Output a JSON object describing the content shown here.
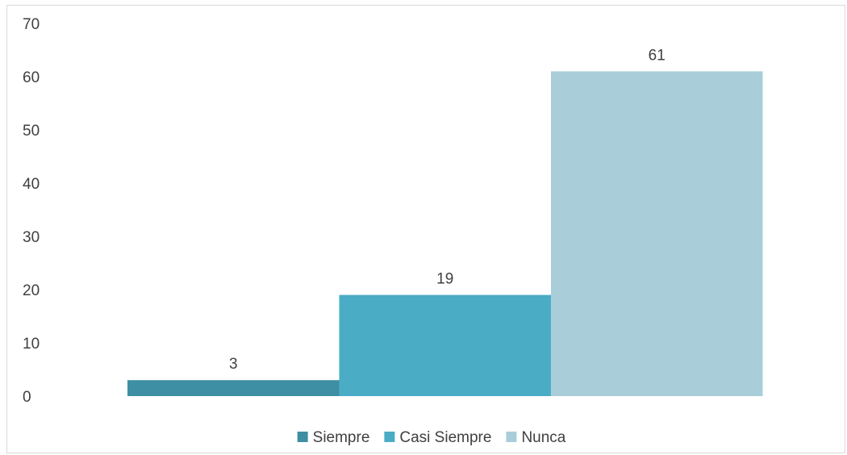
{
  "chart_data": {
    "type": "bar",
    "categories": [
      "Siempre",
      "Casi Siempre",
      "Nunca"
    ],
    "values": [
      3,
      19,
      61
    ],
    "colors": [
      "#3e8fa3",
      "#4bacc6",
      "#a9ceda"
    ],
    "ylim": [
      0,
      70
    ],
    "yticks": [
      0,
      10,
      20,
      30,
      40,
      50,
      60,
      70
    ],
    "grid": false,
    "legend_placement": "bottom",
    "legend": [
      "Siempre",
      "Casi Siempre",
      "Nunca"
    ],
    "data_labels": [
      "3",
      "19",
      "61"
    ]
  }
}
